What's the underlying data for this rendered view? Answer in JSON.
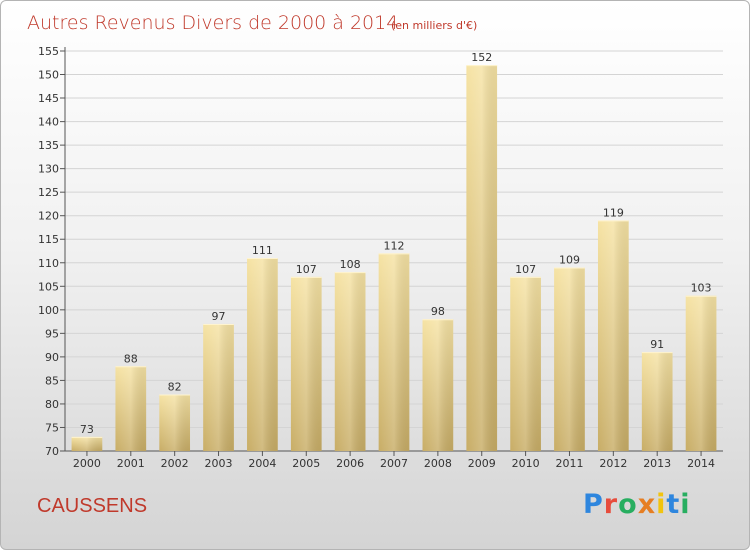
{
  "header": {
    "title": "Autres Revenus Divers de 2000 à 2014",
    "unit": "(en milliers d'€)"
  },
  "commune": "CAUSSENS",
  "logo": {
    "text": "Proxiti",
    "colors": [
      "#2e86de",
      "#e74c3c",
      "#27ae60",
      "#e67e22",
      "#f1c40f",
      "#2e86de",
      "#27ae60"
    ]
  },
  "colors": {
    "bar_light": "#f6e3a4",
    "bar_dark": "#c8ad66",
    "title": "#c0392b",
    "grid": "#d4d4d4"
  },
  "chart_data": {
    "type": "bar",
    "title": "Autres Revenus Divers de 2000 à 2014",
    "subtitle": "(en milliers d'€)",
    "xlabel": "",
    "ylabel": "",
    "categories": [
      "2000",
      "2001",
      "2002",
      "2003",
      "2004",
      "2005",
      "2006",
      "2007",
      "2008",
      "2009",
      "2010",
      "2011",
      "2012",
      "2013",
      "2014"
    ],
    "values": [
      73,
      88,
      82,
      97,
      111,
      107,
      108,
      112,
      98,
      152,
      107,
      109,
      119,
      91,
      103
    ],
    "ylim": [
      70,
      155
    ],
    "yticks": [
      70,
      75,
      80,
      85,
      90,
      95,
      100,
      105,
      110,
      115,
      120,
      125,
      130,
      135,
      140,
      145,
      150,
      155
    ],
    "grid": true,
    "data_labels": true
  }
}
